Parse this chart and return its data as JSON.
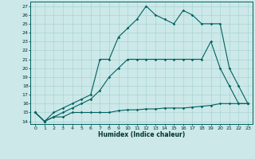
{
  "xlabel": "Humidex (Indice chaleur)",
  "bg_color": "#cce8e8",
  "grid_color": "#aad4d4",
  "line_color": "#006060",
  "xlim": [
    -0.5,
    23.5
  ],
  "ylim": [
    13.7,
    27.5
  ],
  "xticks": [
    0,
    1,
    2,
    3,
    4,
    5,
    6,
    7,
    8,
    9,
    10,
    11,
    12,
    13,
    14,
    15,
    16,
    17,
    18,
    19,
    20,
    21,
    22,
    23
  ],
  "yticks": [
    14,
    15,
    16,
    17,
    18,
    19,
    20,
    21,
    22,
    23,
    24,
    25,
    26,
    27
  ],
  "curve1_x": [
    0,
    1,
    2,
    3,
    4,
    5,
    6,
    7,
    8,
    9,
    10,
    11,
    12,
    13,
    14,
    15,
    16,
    17,
    18,
    19,
    20,
    21,
    22,
    23
  ],
  "curve1_y": [
    15,
    14,
    14.5,
    14.5,
    15,
    15,
    15,
    15,
    15,
    15.2,
    15.3,
    15.3,
    15.4,
    15.4,
    15.5,
    15.5,
    15.5,
    15.6,
    15.7,
    15.8,
    16,
    16,
    16,
    16
  ],
  "curve2_x": [
    0,
    1,
    2,
    3,
    4,
    5,
    6,
    7,
    8,
    9,
    10,
    11,
    12,
    13,
    14,
    15,
    16,
    17,
    18,
    19,
    20,
    21,
    22,
    23
  ],
  "curve2_y": [
    15,
    14,
    14.5,
    15,
    15.5,
    16,
    16.5,
    17.5,
    19,
    20,
    21,
    21,
    21,
    21,
    21,
    21,
    21,
    21,
    21,
    23,
    20,
    18,
    16,
    16
  ],
  "curve3_x": [
    0,
    1,
    2,
    3,
    4,
    5,
    6,
    7,
    8,
    9,
    10,
    11,
    12,
    13,
    14,
    15,
    16,
    17,
    18,
    19,
    20,
    21,
    22,
    23
  ],
  "curve3_y": [
    15,
    14,
    15,
    15.5,
    16,
    16.5,
    17,
    21,
    21,
    23.5,
    24.5,
    25.5,
    27,
    26,
    25.5,
    25,
    26.5,
    26,
    25,
    25,
    25,
    20,
    18,
    16
  ]
}
